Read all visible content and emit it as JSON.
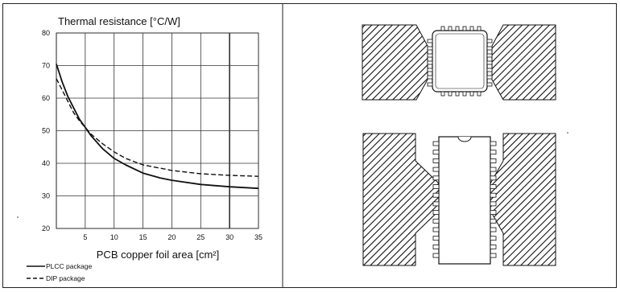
{
  "figure": {
    "title": "Thermal resistance  [°C/W]",
    "xlabel": "PCB copper foil area  [cm²]"
  },
  "chart_data": {
    "type": "line",
    "title": "Thermal resistance  [°C/W]",
    "xlabel": "PCB copper foil area  [cm²]",
    "ylabel": "",
    "xlim": [
      0,
      35
    ],
    "ylim": [
      20,
      80
    ],
    "xticks": [
      5,
      10,
      15,
      20,
      25,
      30,
      35
    ],
    "yticks": [
      20,
      30,
      40,
      50,
      60,
      70,
      80
    ],
    "grid": true,
    "legend_position": "bottom-left",
    "series": [
      {
        "name": "PLCC package",
        "style": "solid",
        "x": [
          0,
          1,
          2,
          3,
          4,
          5,
          6,
          8,
          10,
          12,
          15,
          18,
          20,
          25,
          30,
          35
        ],
        "y": [
          70.5,
          65,
          60.5,
          57,
          53.5,
          51,
          48.5,
          44.5,
          41.5,
          39.5,
          37,
          35.5,
          34.8,
          33.5,
          32.8,
          32.3
        ]
      },
      {
        "name": "DIP package",
        "style": "dashed",
        "x": [
          0,
          1,
          2,
          3,
          4,
          5,
          6,
          8,
          10,
          12,
          15,
          18,
          20,
          25,
          30,
          35
        ],
        "y": [
          66,
          62.5,
          59,
          55.5,
          53,
          51,
          49,
          46,
          43.5,
          41.5,
          39.5,
          38.5,
          37.8,
          36.8,
          36.3,
          36
        ]
      }
    ]
  },
  "diagrams": {
    "top": "PLCC package on PCB copper foil",
    "bottom": "DIP package on PCB copper foil"
  }
}
